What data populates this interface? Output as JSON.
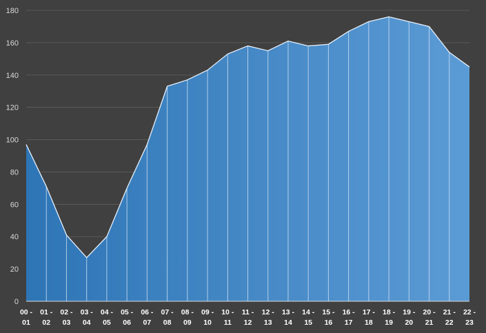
{
  "chart_data": {
    "type": "area",
    "categories": [
      "00 - 01",
      "01 - 02",
      "02 - 03",
      "03 - 04",
      "04 - 05",
      "05 - 06",
      "06 - 07",
      "07 - 08",
      "08 - 09",
      "09 - 10",
      "10 - 11",
      "11 - 12",
      "12 - 13",
      "13 - 14",
      "14 - 15",
      "15 - 16",
      "16 - 17",
      "17 - 18",
      "18 - 19",
      "19 - 20",
      "20 - 21",
      "21 - 22",
      "22 - 23"
    ],
    "values": [
      97,
      71,
      41,
      27,
      40,
      70,
      97,
      133,
      137,
      143,
      153,
      158,
      155,
      161,
      158,
      159,
      167,
      173,
      176,
      173,
      170,
      154,
      145
    ],
    "ylim": [
      0,
      180
    ],
    "yticks": [
      0,
      20,
      40,
      60,
      80,
      100,
      120,
      140,
      160,
      180
    ],
    "grid": true,
    "legend": "none",
    "colors": {
      "fill_start": "#2e75b6",
      "fill_end": "#5b9bd5",
      "line": "#e8f0fa",
      "background": "#404040"
    }
  }
}
